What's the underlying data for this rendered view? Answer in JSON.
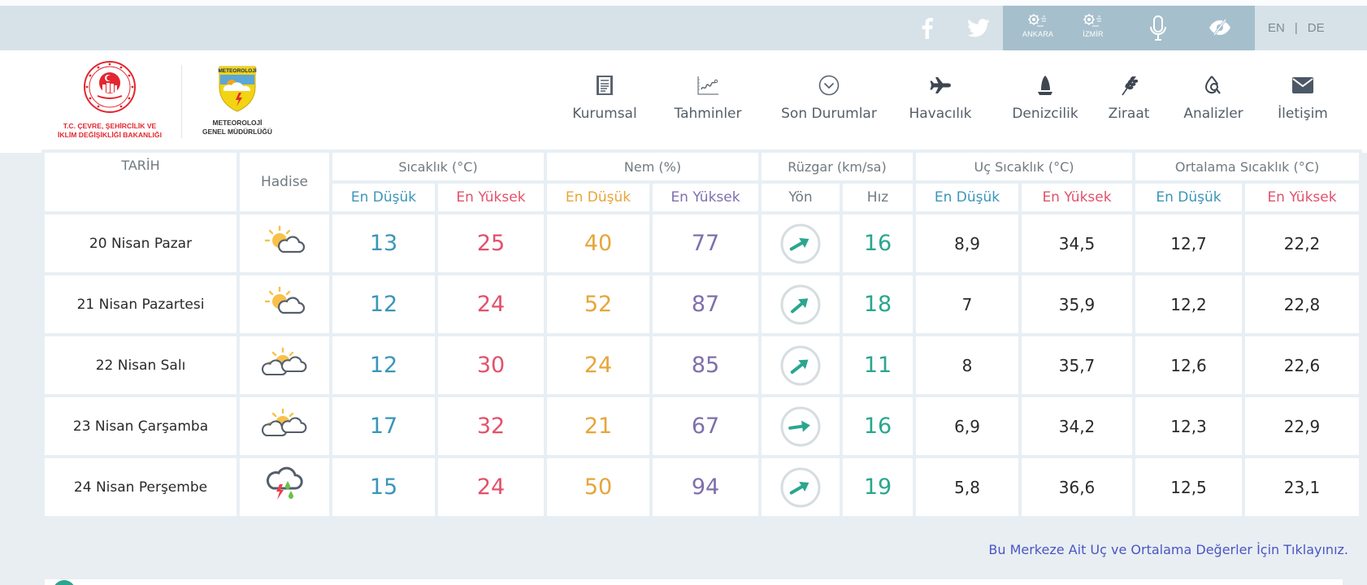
{
  "topbar": {
    "social": [
      {
        "name": "facebook",
        "icon": "facebook-icon"
      },
      {
        "name": "twitter",
        "icon": "twitter-icon"
      }
    ],
    "cities": [
      {
        "label": "ANKARA",
        "icon": "weather-station-icon"
      },
      {
        "label": "İZMİR",
        "icon": "weather-station-icon"
      }
    ],
    "voice_icon": "microphone-icon",
    "accessibility_icon": "eye-slash-icon",
    "languages": [
      "EN",
      "DE"
    ],
    "language_separator": "|",
    "colors": {
      "bar": "#d6e2e8",
      "dark_block": "#a6bfcc"
    }
  },
  "header": {
    "ministry_logo_text_line1": "T.C. ÇEVRE, ŞEHİRCİLİK VE",
    "ministry_logo_text_line2": "İKLİM DEĞİŞİKLİĞİ BAKANLIĞI",
    "mgm_logo_badge": "METEOROLOJİ",
    "mgm_logo_text_line1": "METEOROLOJİ",
    "mgm_logo_text_line2": "GENEL MÜDÜRLÜĞÜ",
    "nav": [
      {
        "label": "Kurumsal",
        "icon": "document-icon"
      },
      {
        "label": "Tahminler",
        "icon": "chart-icon"
      },
      {
        "label": "Son Durumlar",
        "icon": "chevron-circle-icon"
      },
      {
        "label": "Havacılık",
        "icon": "airplane-icon"
      },
      {
        "label": "Denizcilik",
        "icon": "sailboat-icon"
      },
      {
        "label": "Ziraat",
        "icon": "wheat-icon"
      },
      {
        "label": "Analizler",
        "icon": "drop-search-icon"
      },
      {
        "label": "İletişim",
        "icon": "envelope-icon"
      }
    ]
  },
  "table": {
    "headers": {
      "date": "TARİH",
      "event": "Hadise",
      "temp": "Sıcaklık (°C)",
      "humidity": "Nem (%)",
      "wind": "Rüzgar (km/sa)",
      "extreme": "Uç Sıcaklık (°C)",
      "average": "Ortalama Sıcaklık (°C)",
      "min": "En Düşük",
      "max": "En Yüksek",
      "direction": "Yön",
      "speed": "Hız"
    },
    "rows": [
      {
        "date": "20 Nisan Pazar",
        "event": "partly-cloudy",
        "temp_min": "13",
        "temp_max": "25",
        "hum_min": "40",
        "hum_max": "77",
        "wind_dir_deg": -30,
        "wind_speed": "16",
        "ext_min": "8,9",
        "ext_max": "34,5",
        "avg_min": "12,7",
        "avg_max": "22,2"
      },
      {
        "date": "21 Nisan Pazartesi",
        "event": "partly-cloudy",
        "temp_min": "12",
        "temp_max": "24",
        "hum_min": "52",
        "hum_max": "87",
        "wind_dir_deg": -40,
        "wind_speed": "18",
        "ext_min": "7",
        "ext_max": "35,9",
        "avg_min": "12,2",
        "avg_max": "22,8"
      },
      {
        "date": "22 Nisan Salı",
        "event": "mostly-cloudy",
        "temp_min": "12",
        "temp_max": "30",
        "hum_min": "24",
        "hum_max": "85",
        "wind_dir_deg": -38,
        "wind_speed": "11",
        "ext_min": "8",
        "ext_max": "35,7",
        "avg_min": "12,6",
        "avg_max": "22,6"
      },
      {
        "date": "23 Nisan Çarşamba",
        "event": "mostly-cloudy",
        "temp_min": "17",
        "temp_max": "32",
        "hum_min": "21",
        "hum_max": "67",
        "wind_dir_deg": -8,
        "wind_speed": "16",
        "ext_min": "6,9",
        "ext_max": "34,2",
        "avg_min": "12,3",
        "avg_max": "22,9"
      },
      {
        "date": "24 Nisan Perşembe",
        "event": "thunderstorm-rain",
        "temp_min": "15",
        "temp_max": "24",
        "hum_min": "50",
        "hum_max": "94",
        "wind_dir_deg": -30,
        "wind_speed": "19",
        "ext_min": "5,8",
        "ext_max": "36,6",
        "avg_min": "12,5",
        "avg_max": "23,1"
      }
    ],
    "colors": {
      "min_temp": "#3a96b8",
      "max_temp": "#e2516b",
      "min_hum": "#e6a63a",
      "max_hum": "#7f6fad",
      "wind": "#2aa68f"
    }
  },
  "footer_link": "Bu Merkeze Ait Uç ve Ortalama Değerler İçin Tıklayınız."
}
